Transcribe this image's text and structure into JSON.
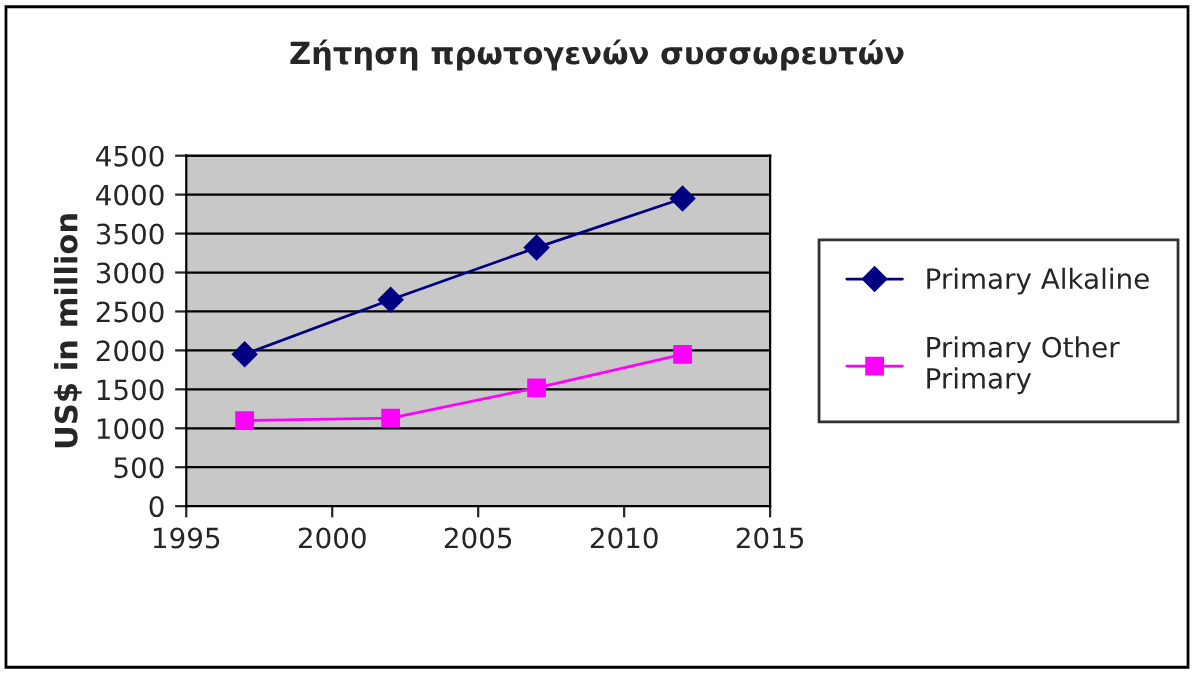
{
  "chart_data": {
    "type": "line",
    "title": "Ζήτηση πρωτογενών συσσωρευτών",
    "ylabel": "US$ in million",
    "x": [
      1997,
      2002,
      2007,
      2012
    ],
    "series": [
      {
        "name": "Primary Alkaline",
        "color": "#000080",
        "marker": "diamond",
        "values": [
          1950,
          2650,
          3320,
          3950
        ]
      },
      {
        "name": "Primary Other Primary",
        "color": "#ff00ff",
        "marker": "square",
        "values": [
          1100,
          1130,
          1520,
          1950
        ]
      }
    ],
    "xlim": [
      1995,
      2015
    ],
    "xticks": [
      1995,
      2000,
      2005,
      2010,
      2015
    ],
    "ylim": [
      0,
      4500
    ],
    "yticks": [
      0,
      500,
      1000,
      1500,
      2000,
      2500,
      3000,
      3500,
      4000,
      4500
    ],
    "grid": "y",
    "legend": "right"
  }
}
